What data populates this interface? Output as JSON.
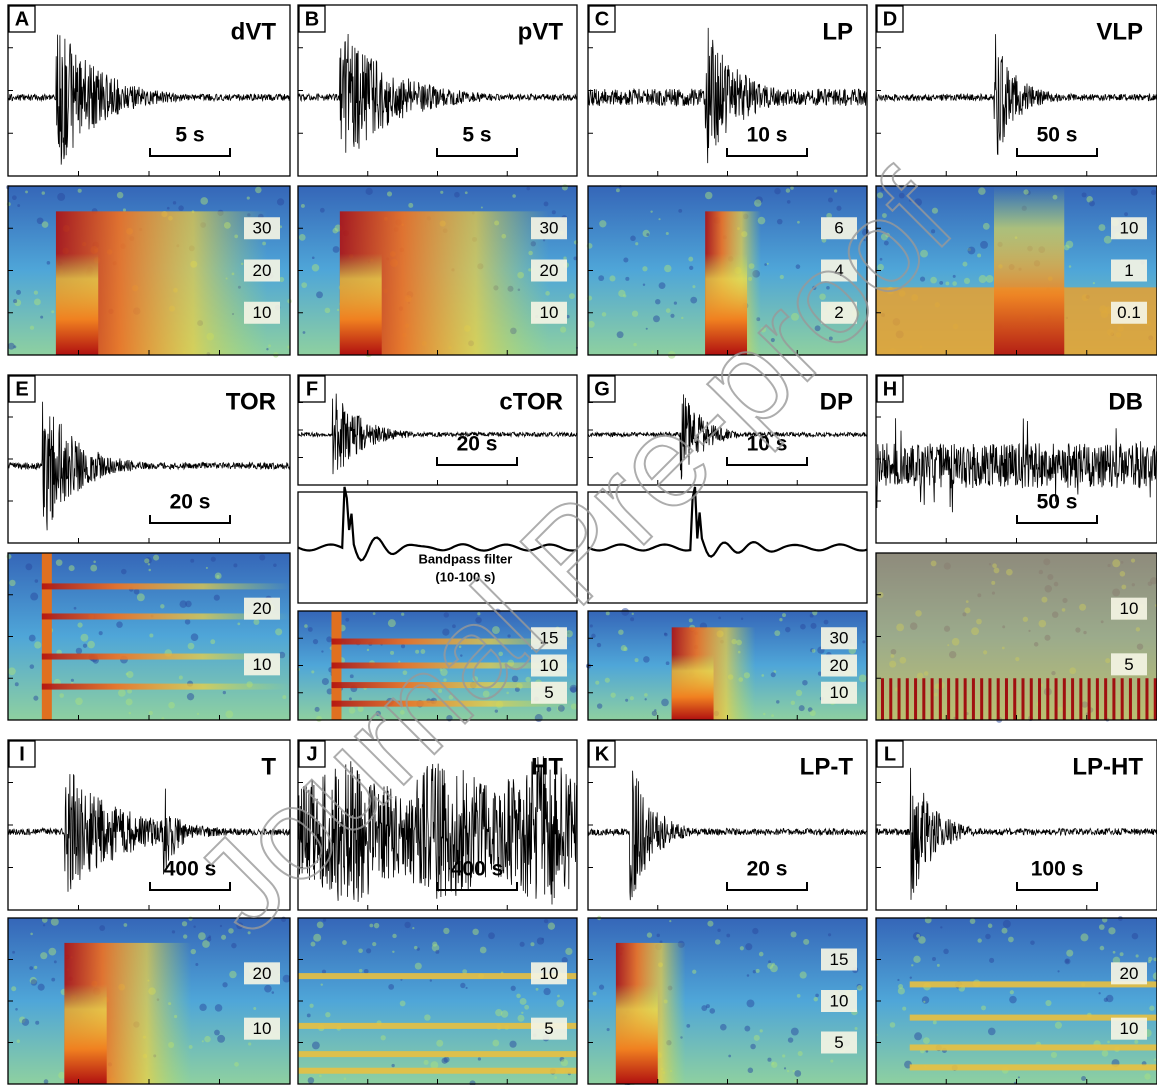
{
  "panels": [
    {
      "letter": "A",
      "title": "dVT",
      "scale": "5 s",
      "freq_labels": [
        "30",
        "20",
        "10"
      ]
    },
    {
      "letter": "B",
      "title": "pVT",
      "scale": "5 s",
      "freq_labels": [
        "30",
        "20",
        "10"
      ]
    },
    {
      "letter": "C",
      "title": "LP",
      "scale": "10 s",
      "freq_labels": [
        "6",
        "4",
        "2"
      ]
    },
    {
      "letter": "D",
      "title": "VLP",
      "scale": "50 s",
      "freq_labels": [
        "10",
        "1",
        "0.1"
      ]
    },
    {
      "letter": "E",
      "title": "TOR",
      "scale": "20 s",
      "freq_labels": [
        "20",
        "10"
      ]
    },
    {
      "letter": "F",
      "title": "cTOR",
      "scale": "20 s",
      "freq_labels": [
        "15",
        "10",
        "5"
      ],
      "filter_label": [
        "Bandpass filter",
        "(10-100 s)"
      ]
    },
    {
      "letter": "G",
      "title": "DP",
      "scale": "10 s",
      "freq_labels": [
        "30",
        "20",
        "10"
      ]
    },
    {
      "letter": "H",
      "title": "DB",
      "scale": "50 s",
      "freq_labels": [
        "10",
        "5"
      ]
    },
    {
      "letter": "I",
      "title": "T",
      "scale": "400 s",
      "freq_labels": [
        "20",
        "10"
      ]
    },
    {
      "letter": "J",
      "title": "HT",
      "scale": "400 s",
      "freq_labels": [
        "10",
        "5"
      ]
    },
    {
      "letter": "K",
      "title": "LP-T",
      "scale": "20 s",
      "freq_labels": [
        "15",
        "10",
        "5"
      ]
    },
    {
      "letter": "L",
      "title": "LP-HT",
      "scale": "100 s",
      "freq_labels": [
        "20",
        "10"
      ]
    }
  ],
  "watermark": "Journal Pre-proof"
}
